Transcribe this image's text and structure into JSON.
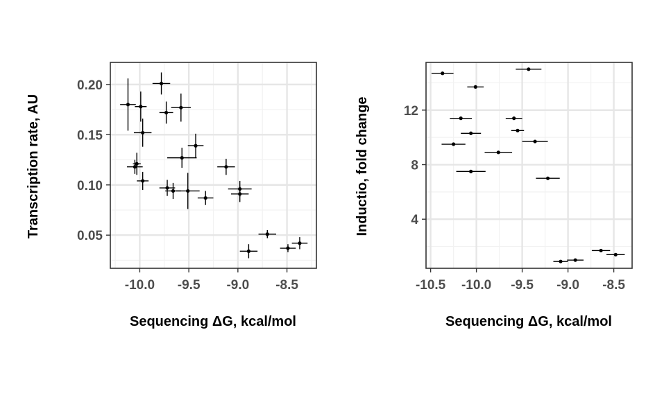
{
  "colors": {
    "background": "#ffffff",
    "panel_border": "#333333",
    "grid_major": "#e6e6e6",
    "grid_minor": "#f2f2f2",
    "point": "#000000",
    "tick_text": "#4d4d4d"
  },
  "chart_data": [
    {
      "type": "scatter",
      "xlabel": "Sequencing ΔG, kcal/mol",
      "ylabel": "Transcription rate, AU",
      "xlim": [
        -10.3,
        -8.2
      ],
      "ylim": [
        0.017,
        0.222
      ],
      "xticks": [
        -10.0,
        -9.5,
        -9.0,
        -8.5
      ],
      "xtick_labels": [
        "-10.0",
        "-9.5",
        "-9.0",
        "-8.5"
      ],
      "yticks": [
        0.05,
        0.1,
        0.15,
        0.2
      ],
      "ytick_labels": [
        "0.05",
        "0.10",
        "0.15",
        "0.20"
      ],
      "grid": true,
      "error_bars": "x and y",
      "points": [
        {
          "x": -10.12,
          "y": 0.18,
          "xerr": 0.08,
          "yerr": 0.026
        },
        {
          "x": -9.99,
          "y": 0.178,
          "xerr": 0.06,
          "yerr": 0.015
        },
        {
          "x": -9.78,
          "y": 0.201,
          "xerr": 0.09,
          "yerr": 0.011
        },
        {
          "x": -9.73,
          "y": 0.172,
          "xerr": 0.07,
          "yerr": 0.011
        },
        {
          "x": -9.58,
          "y": 0.177,
          "xerr": 0.1,
          "yerr": 0.014
        },
        {
          "x": -9.97,
          "y": 0.152,
          "xerr": 0.09,
          "yerr": 0.014
        },
        {
          "x": -9.43,
          "y": 0.139,
          "xerr": 0.08,
          "yerr": 0.012
        },
        {
          "x": -9.57,
          "y": 0.127,
          "xerr": 0.15,
          "yerr": 0.01
        },
        {
          "x": -10.05,
          "y": 0.118,
          "xerr": 0.08,
          "yerr": 0.007
        },
        {
          "x": -10.03,
          "y": 0.121,
          "xerr": 0.04,
          "yerr": 0.011
        },
        {
          "x": -9.97,
          "y": 0.104,
          "xerr": 0.06,
          "yerr": 0.009
        },
        {
          "x": -9.72,
          "y": 0.097,
          "xerr": 0.08,
          "yerr": 0.008
        },
        {
          "x": -9.66,
          "y": 0.094,
          "xerr": 0.08,
          "yerr": 0.008
        },
        {
          "x": -9.51,
          "y": 0.094,
          "xerr": 0.12,
          "yerr": 0.018
        },
        {
          "x": -9.12,
          "y": 0.118,
          "xerr": 0.09,
          "yerr": 0.008
        },
        {
          "x": -8.98,
          "y": 0.096,
          "xerr": 0.12,
          "yerr": 0.008
        },
        {
          "x": -8.98,
          "y": 0.091,
          "xerr": 0.09,
          "yerr": 0.008
        },
        {
          "x": -9.33,
          "y": 0.087,
          "xerr": 0.08,
          "yerr": 0.007
        },
        {
          "x": -8.7,
          "y": 0.051,
          "xerr": 0.09,
          "yerr": 0.004
        },
        {
          "x": -8.89,
          "y": 0.034,
          "xerr": 0.09,
          "yerr": 0.007
        },
        {
          "x": -8.49,
          "y": 0.037,
          "xerr": 0.08,
          "yerr": 0.004
        },
        {
          "x": -8.37,
          "y": 0.042,
          "xerr": 0.08,
          "yerr": 0.006
        }
      ]
    },
    {
      "type": "scatter",
      "xlabel": "Sequencing ΔG, kcal/mol",
      "ylabel": "Inductio, fold change",
      "xlim": [
        -10.55,
        -8.3
      ],
      "ylim": [
        0.4,
        15.5
      ],
      "xticks": [
        -10.5,
        -10.0,
        -9.5,
        -9.0,
        -8.5
      ],
      "xtick_labels": [
        "-10.5",
        "-10.0",
        "-9.5",
        "-9.0",
        "-8.5"
      ],
      "yticks": [
        4,
        8,
        12
      ],
      "ytick_labels": [
        "4",
        "8",
        "12"
      ],
      "grid": true,
      "error_bars": "x only",
      "points": [
        {
          "x": -10.37,
          "y": 14.7,
          "xerr": 0.12
        },
        {
          "x": -9.43,
          "y": 15.0,
          "xerr": 0.14
        },
        {
          "x": -10.01,
          "y": 13.7,
          "xerr": 0.09
        },
        {
          "x": -10.17,
          "y": 11.4,
          "xerr": 0.12
        },
        {
          "x": -9.59,
          "y": 11.4,
          "xerr": 0.09
        },
        {
          "x": -10.06,
          "y": 10.3,
          "xerr": 0.11
        },
        {
          "x": -9.55,
          "y": 10.5,
          "xerr": 0.07
        },
        {
          "x": -10.25,
          "y": 9.5,
          "xerr": 0.13
        },
        {
          "x": -9.36,
          "y": 9.7,
          "xerr": 0.14
        },
        {
          "x": -9.76,
          "y": 8.9,
          "xerr": 0.15
        },
        {
          "x": -10.06,
          "y": 7.5,
          "xerr": 0.16
        },
        {
          "x": -9.22,
          "y": 7.0,
          "xerr": 0.13
        },
        {
          "x": -9.08,
          "y": 0.9,
          "xerr": 0.08
        },
        {
          "x": -8.92,
          "y": 1.0,
          "xerr": 0.09
        },
        {
          "x": -8.64,
          "y": 1.7,
          "xerr": 0.1
        },
        {
          "x": -8.48,
          "y": 1.4,
          "xerr": 0.1
        }
      ]
    }
  ]
}
